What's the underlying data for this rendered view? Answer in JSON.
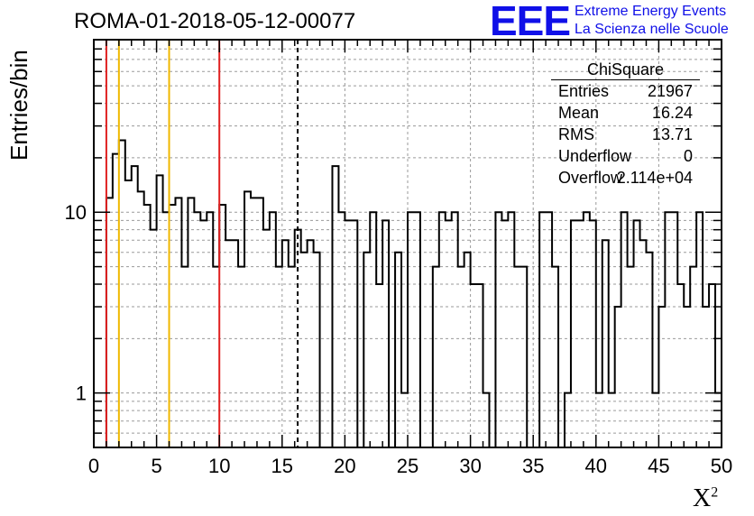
{
  "header": {
    "run_title": "ROMA-01-2018-05-12-00077",
    "logo_text": "EEE",
    "logo_line1": "Extreme Energy Events",
    "logo_line2": "La Scienza nelle Scuole"
  },
  "axes": {
    "ylabel": "Entries/bin",
    "xlabel": "X",
    "xlabel_sup": "2"
  },
  "stats": {
    "title": "ChiSquare",
    "rows": [
      {
        "key": "Entries",
        "value": "21967"
      },
      {
        "key": "Mean",
        "value": "16.24"
      },
      {
        "key": "RMS",
        "value": "13.71"
      },
      {
        "key": "Underflow",
        "value": "0"
      },
      {
        "key": "Overflow",
        "value": "2.114e+04"
      }
    ]
  },
  "colors": {
    "histogram": "#000000",
    "red_lines": "#e02020",
    "yellow_lines": "#f0b800",
    "grid": "#9a9a9a",
    "logo": "#1010e8"
  },
  "chart_data": {
    "type": "bar",
    "histogram": true,
    "bin_width": 0.5,
    "x_start": 0,
    "values": [
      0,
      0,
      12,
      21,
      25,
      15,
      18,
      13,
      11,
      8,
      16,
      10,
      11,
      12,
      5,
      12,
      10,
      9,
      10,
      5,
      11,
      7,
      7,
      5,
      13,
      12,
      12,
      8,
      10,
      5,
      7,
      5,
      8,
      6,
      7,
      6,
      0,
      0,
      18,
      10,
      9,
      9,
      0,
      6,
      10,
      4,
      9,
      0,
      6,
      1,
      10,
      10,
      0,
      0,
      5,
      10,
      9,
      10,
      5,
      6,
      4,
      4,
      1,
      0,
      10,
      9,
      10,
      5,
      5,
      0,
      0,
      10,
      10,
      5,
      0,
      1,
      9,
      9,
      10,
      9,
      1,
      7,
      1,
      3,
      10,
      5,
      9,
      7,
      6,
      1,
      3,
      10,
      10,
      4,
      3,
      5,
      10,
      3,
      4,
      1
    ],
    "xlim": [
      0,
      50
    ],
    "ylim": [
      0.5,
      90
    ],
    "y_scale": "log",
    "x_ticks": [
      0,
      5,
      10,
      15,
      20,
      25,
      30,
      35,
      40,
      45,
      50
    ],
    "y_ticks": [
      1,
      10
    ],
    "grid": true,
    "vertical_lines": [
      {
        "x": 1,
        "color": "red"
      },
      {
        "x": 2,
        "color": "yellow"
      },
      {
        "x": 6,
        "color": "yellow"
      },
      {
        "x": 10,
        "color": "red"
      },
      {
        "x": 16.24,
        "color": "black",
        "style": "dashed"
      }
    ]
  }
}
